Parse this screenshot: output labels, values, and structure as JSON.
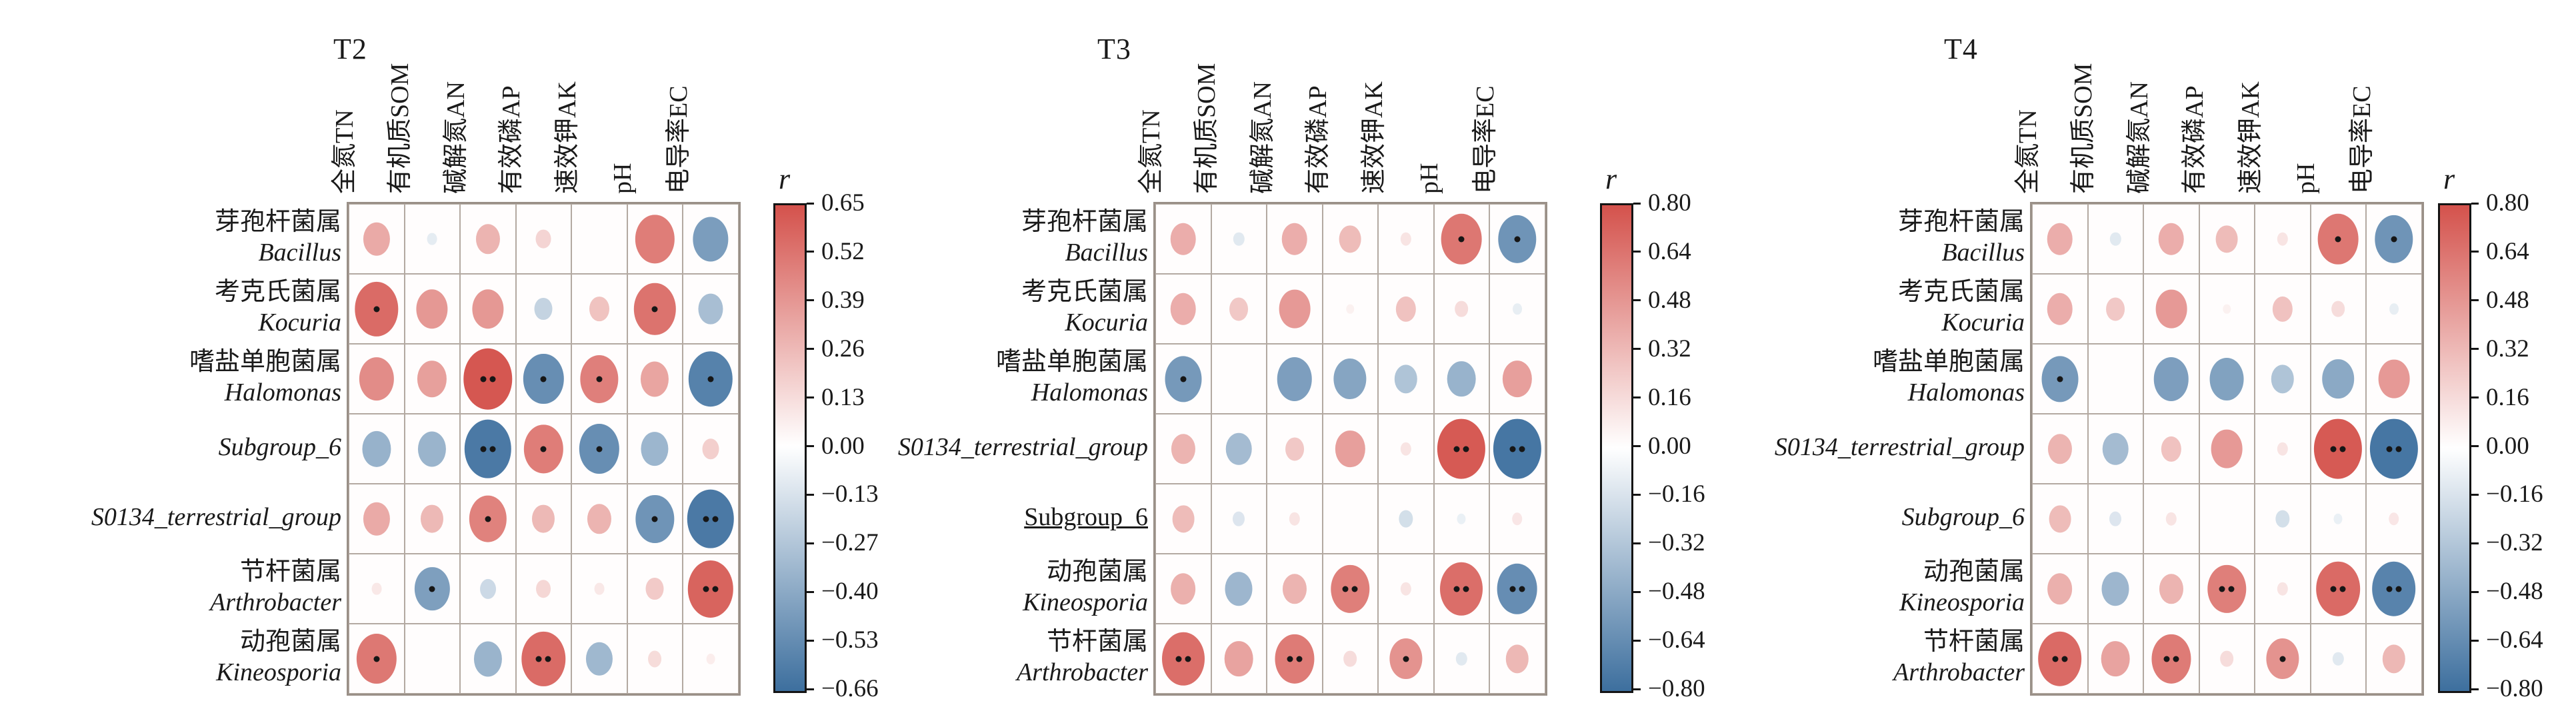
{
  "style": {
    "positive_color": "#d4524c",
    "negative_color": "#3d6f9e",
    "grid_color": "#b3a9a1",
    "significance_color": "#161616",
    "background": "#ffffff"
  },
  "chart_data": [
    {
      "type": "heatmap",
      "title": "T2",
      "x_labels": [
        "全氮TN",
        "有机质SOM",
        "碱解氮AN",
        "有效磷AP",
        "速效钾AK",
        "pH",
        "电导率EC"
      ],
      "y_labels": [
        {
          "cn": "芽孢杆菌属",
          "latin": "Bacillus",
          "italic": true,
          "underline": false
        },
        {
          "cn": "考克氏菌属",
          "latin": "Kocuria",
          "italic": true,
          "underline": false
        },
        {
          "cn": "嗜盐单胞菌属",
          "latin": "Halomonas",
          "italic": true,
          "underline": false
        },
        {
          "cn": "",
          "latin": "Subgroup_6",
          "italic": true,
          "underline": false
        },
        {
          "cn": "",
          "latin": "S0134_terrestrial_group",
          "italic": true,
          "underline": false
        },
        {
          "cn": "节杆菌属",
          "latin": "Arthrobacter",
          "italic": true,
          "underline": false
        },
        {
          "cn": "动孢菌属",
          "latin": "Kineosporia",
          "italic": true,
          "underline": false
        }
      ],
      "values": [
        [
          0.3,
          -0.05,
          0.26,
          0.13,
          0.0,
          0.48,
          -0.43
        ],
        [
          0.55,
          0.37,
          0.37,
          -0.17,
          0.2,
          0.52,
          -0.27
        ],
        [
          0.42,
          0.34,
          0.63,
          -0.5,
          0.47,
          0.32,
          -0.56
        ],
        [
          -0.33,
          -0.32,
          -0.6,
          0.48,
          -0.5,
          -0.31,
          0.15
        ],
        [
          0.3,
          0.24,
          0.46,
          0.24,
          0.26,
          -0.47,
          -0.6
        ],
        [
          0.05,
          -0.42,
          -0.14,
          0.12,
          0.05,
          0.17,
          0.58
        ],
        [
          0.5,
          0.0,
          -0.32,
          0.55,
          -0.3,
          0.1,
          0.03
        ]
      ],
      "significance": [
        [
          0,
          0,
          0,
          0,
          0,
          0,
          0
        ],
        [
          1,
          0,
          0,
          0,
          0,
          1,
          0
        ],
        [
          0,
          0,
          2,
          1,
          1,
          0,
          1
        ],
        [
          0,
          0,
          2,
          1,
          1,
          0,
          0
        ],
        [
          0,
          0,
          1,
          0,
          0,
          1,
          2
        ],
        [
          0,
          1,
          0,
          0,
          0,
          0,
          2
        ],
        [
          1,
          0,
          0,
          2,
          0,
          0,
          0
        ]
      ],
      "legend": {
        "label": "r",
        "max": 0.65,
        "min": -0.66,
        "ticks": [
          "0.65",
          "0.52",
          "0.39",
          "0.26",
          "0.13",
          "0.00",
          "−0.13",
          "−0.27",
          "−0.40",
          "−0.53",
          "−0.66"
        ]
      }
    },
    {
      "type": "heatmap",
      "title": "T3",
      "x_labels": [
        "全氮TN",
        "有机质SOM",
        "碱解氮AN",
        "有效磷AP",
        "速效钾AK",
        "pH",
        "电导率EC"
      ],
      "y_labels": [
        {
          "cn": "芽孢杆菌属",
          "latin": "Bacillus",
          "italic": true,
          "underline": false
        },
        {
          "cn": "考克氏菌属",
          "latin": "Kocuria",
          "italic": true,
          "underline": false
        },
        {
          "cn": "嗜盐单胞菌属",
          "latin": "Halomonas",
          "italic": true,
          "underline": false
        },
        {
          "cn": "",
          "latin": "S0134_terrestrial_group",
          "italic": true,
          "underline": false
        },
        {
          "cn": "",
          "latin": "Subgroup_6",
          "italic": false,
          "underline": true
        },
        {
          "cn": "动孢菌属",
          "latin": "Kineosporia",
          "italic": true,
          "underline": false
        },
        {
          "cn": "节杆菌属",
          "latin": "Arthrobacter",
          "italic": true,
          "underline": false
        }
      ],
      "values": [
        [
          0.35,
          -0.08,
          0.35,
          0.28,
          0.08,
          0.62,
          -0.58
        ],
        [
          0.35,
          0.22,
          0.45,
          0.02,
          0.25,
          0.12,
          -0.05
        ],
        [
          -0.55,
          0.0,
          -0.52,
          -0.48,
          -0.3,
          -0.4,
          0.42
        ],
        [
          0.32,
          -0.35,
          0.22,
          0.42,
          0.08,
          0.76,
          -0.76
        ],
        [
          0.28,
          -0.1,
          0.08,
          0.0,
          -0.14,
          -0.04,
          0.07
        ],
        [
          0.34,
          -0.38,
          0.32,
          0.58,
          0.08,
          0.66,
          -0.62
        ],
        [
          0.66,
          0.4,
          0.6,
          0.12,
          0.48,
          -0.08,
          0.3
        ]
      ],
      "significance": [
        [
          0,
          0,
          0,
          0,
          0,
          1,
          1
        ],
        [
          0,
          0,
          0,
          0,
          0,
          0,
          0
        ],
        [
          1,
          0,
          0,
          0,
          0,
          0,
          0
        ],
        [
          0,
          0,
          0,
          0,
          0,
          2,
          2
        ],
        [
          0,
          0,
          0,
          0,
          0,
          0,
          0
        ],
        [
          0,
          0,
          0,
          2,
          0,
          2,
          2
        ],
        [
          2,
          0,
          2,
          0,
          1,
          0,
          0
        ]
      ],
      "legend": {
        "label": "r",
        "max": 0.8,
        "min": -0.8,
        "ticks": [
          "0.80",
          "0.64",
          "0.48",
          "0.32",
          "0.16",
          "0.00",
          "−0.16",
          "−0.32",
          "−0.48",
          "−0.64",
          "−0.80"
        ]
      }
    },
    {
      "type": "heatmap",
      "title": "T4",
      "x_labels": [
        "全氮TN",
        "有机质SOM",
        "碱解氮AN",
        "有效磷AP",
        "速效钾AK",
        "pH",
        "电导率EC"
      ],
      "y_labels": [
        {
          "cn": "芽孢杆菌属",
          "latin": "Bacillus",
          "italic": true,
          "underline": false
        },
        {
          "cn": "考克氏菌属",
          "latin": "Kocuria",
          "italic": true,
          "underline": false
        },
        {
          "cn": "嗜盐单胞菌属",
          "latin": "Halomonas",
          "italic": true,
          "underline": false
        },
        {
          "cn": "",
          "latin": "S0134_terrestrial_group",
          "italic": true,
          "underline": false
        },
        {
          "cn": "",
          "latin": "Subgroup_6",
          "italic": true,
          "underline": false
        },
        {
          "cn": "动孢菌属",
          "latin": "Kineosporia",
          "italic": true,
          "underline": false
        },
        {
          "cn": "节杆菌属",
          "latin": "Arthrobacter",
          "italic": true,
          "underline": false
        }
      ],
      "values": [
        [
          0.35,
          -0.08,
          0.35,
          0.28,
          0.08,
          0.62,
          -0.58
        ],
        [
          0.35,
          0.22,
          0.45,
          0.02,
          0.25,
          0.12,
          -0.05
        ],
        [
          -0.55,
          0.0,
          -0.52,
          -0.5,
          -0.3,
          -0.46,
          0.45
        ],
        [
          0.32,
          -0.35,
          0.25,
          0.45,
          0.08,
          0.76,
          -0.76
        ],
        [
          0.28,
          -0.1,
          0.08,
          0.0,
          -0.14,
          -0.04,
          0.07
        ],
        [
          0.34,
          -0.38,
          0.32,
          0.58,
          0.08,
          0.68,
          -0.68
        ],
        [
          0.68,
          0.4,
          0.6,
          0.12,
          0.48,
          -0.08,
          0.3
        ]
      ],
      "significance": [
        [
          0,
          0,
          0,
          0,
          0,
          1,
          1
        ],
        [
          0,
          0,
          0,
          0,
          0,
          0,
          0
        ],
        [
          1,
          0,
          0,
          0,
          0,
          0,
          0
        ],
        [
          0,
          0,
          0,
          0,
          0,
          2,
          2
        ],
        [
          0,
          0,
          0,
          0,
          0,
          0,
          0
        ],
        [
          0,
          0,
          0,
          2,
          0,
          2,
          2
        ],
        [
          2,
          0,
          2,
          0,
          1,
          0,
          0
        ]
      ],
      "legend": {
        "label": "r",
        "max": 0.8,
        "min": -0.8,
        "ticks": [
          "0.80",
          "0.64",
          "0.48",
          "0.32",
          "0.16",
          "0.00",
          "−0.16",
          "−0.32",
          "−0.48",
          "−0.64",
          "−0.80"
        ]
      }
    }
  ]
}
